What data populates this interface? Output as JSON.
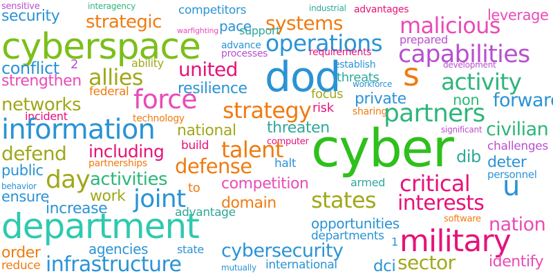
{
  "words": [
    {
      "text": "sensitive",
      "color": "#b84fd0"
    },
    {
      "text": "interagency",
      "color": "#2db67a"
    },
    {
      "text": "competitors",
      "color": "#2a93d5"
    },
    {
      "text": "industrial",
      "color": "#2fa89a"
    },
    {
      "text": "advantages",
      "color": "#e6127a"
    },
    {
      "text": "security",
      "color": "#2a93d5"
    },
    {
      "text": "strategic",
      "color": "#f07b10"
    },
    {
      "text": "pace",
      "color": "#2a93d5"
    },
    {
      "text": "systems",
      "color": "#f07b10"
    },
    {
      "text": "leverage",
      "color": "#e94bb8"
    },
    {
      "text": "malicious",
      "color": "#e94bb8"
    },
    {
      "text": "warfighting",
      "color": "#e94bb8"
    },
    {
      "text": "support",
      "color": "#2fa89a"
    },
    {
      "text": "cyberspace",
      "color": "#7bbf1a"
    },
    {
      "text": "advance",
      "color": "#2a93d5"
    },
    {
      "text": "operations",
      "color": "#2a93d5"
    },
    {
      "text": "prepared",
      "color": "#b84fd0"
    },
    {
      "text": "processes",
      "color": "#b84fd0"
    },
    {
      "text": "capabilities",
      "color": "#b84fd0"
    },
    {
      "text": "requirements",
      "color": "#e6127a"
    },
    {
      "text": "conflict",
      "color": "#2a93d5"
    },
    {
      "text": "2",
      "color": "#b84fd0"
    },
    {
      "text": "ability",
      "color": "#a0a81a"
    },
    {
      "text": "united",
      "color": "#e6127a"
    },
    {
      "text": "dod",
      "color": "#2a93d5"
    },
    {
      "text": "establish",
      "color": "#2a93d5"
    },
    {
      "text": "s",
      "color": "#f07b10"
    },
    {
      "text": "development",
      "color": "#b84fd0"
    },
    {
      "text": "allies",
      "color": "#a0a81a"
    },
    {
      "text": "activity",
      "color": "#2db67a"
    },
    {
      "text": "strengthen",
      "color": "#e94bb8"
    },
    {
      "text": "resilience",
      "color": "#2a93d5"
    },
    {
      "text": "threats",
      "color": "#2fa89a"
    },
    {
      "text": "workforce",
      "color": "#2a93d5"
    },
    {
      "text": "federal",
      "color": "#f07b10"
    },
    {
      "text": "force",
      "color": "#e94bb8"
    },
    {
      "text": "focus",
      "color": "#a0a81a"
    },
    {
      "text": "private",
      "color": "#2a93d5"
    },
    {
      "text": "non",
      "color": "#2db67a"
    },
    {
      "text": "forward",
      "color": "#2a93d5"
    },
    {
      "text": "networks",
      "color": "#a0a81a"
    },
    {
      "text": "incident",
      "color": "#e6127a"
    },
    {
      "text": "strategy",
      "color": "#f07b10"
    },
    {
      "text": "risk",
      "color": "#e6127a"
    },
    {
      "text": "sharing",
      "color": "#f07b10"
    },
    {
      "text": "partners",
      "color": "#2db67a"
    },
    {
      "text": "technology",
      "color": "#f07b10"
    },
    {
      "text": "information",
      "color": "#2a93d5"
    },
    {
      "text": "threaten",
      "color": "#2fa89a"
    },
    {
      "text": "significant",
      "color": "#b84fd0"
    },
    {
      "text": "national",
      "color": "#a0a81a"
    },
    {
      "text": "civilian",
      "color": "#2db67a"
    },
    {
      "text": "computer",
      "color": "#e6127a"
    },
    {
      "text": "cyber",
      "color": "#2ec01c"
    },
    {
      "text": "defend",
      "color": "#a0a81a"
    },
    {
      "text": "including",
      "color": "#e6127a"
    },
    {
      "text": "build",
      "color": "#e6127a"
    },
    {
      "text": "talent",
      "color": "#f07b10"
    },
    {
      "text": "dib",
      "color": "#2fa89a"
    },
    {
      "text": "challenges",
      "color": "#b84fd0"
    },
    {
      "text": "partnerships",
      "color": "#f07b10"
    },
    {
      "text": "defense",
      "color": "#f07b10"
    },
    {
      "text": "halt",
      "color": "#2a93d5"
    },
    {
      "text": "deter",
      "color": "#2a93d5"
    },
    {
      "text": "personnel",
      "color": "#2a93d5"
    },
    {
      "text": "public",
      "color": "#2a93d5"
    },
    {
      "text": "day",
      "color": "#a0a81a"
    },
    {
      "text": "activities",
      "color": "#2db67a"
    },
    {
      "text": "behavior",
      "color": "#2a93d5"
    },
    {
      "text": "to",
      "color": "#f07b10"
    },
    {
      "text": "competition",
      "color": "#e94bb8"
    },
    {
      "text": "armed",
      "color": "#2fa89a"
    },
    {
      "text": "critical",
      "color": "#e6127a"
    },
    {
      "text": "u",
      "color": "#2a93d5"
    },
    {
      "text": "ensure",
      "color": "#2a93d5"
    },
    {
      "text": "work",
      "color": "#a0a81a"
    },
    {
      "text": "joint",
      "color": "#2a93d5"
    },
    {
      "text": "domain",
      "color": "#f07b10"
    },
    {
      "text": "states",
      "color": "#a0a81a"
    },
    {
      "text": "interests",
      "color": "#e6127a"
    },
    {
      "text": "increase",
      "color": "#2a93d5"
    },
    {
      "text": "advantage",
      "color": "#2fa89a"
    },
    {
      "text": "software",
      "color": "#f07b10"
    },
    {
      "text": "department",
      "color": "#2fc9b0"
    },
    {
      "text": "opportunities",
      "color": "#2a93d5"
    },
    {
      "text": "nation",
      "color": "#e94bb8"
    },
    {
      "text": "departments",
      "color": "#2a93d5"
    },
    {
      "text": "1",
      "color": "#2a93d5"
    },
    {
      "text": "military",
      "color": "#e6127a"
    },
    {
      "text": "order",
      "color": "#f07b10"
    },
    {
      "text": "agencies",
      "color": "#2a93d5"
    },
    {
      "text": "state",
      "color": "#2a93d5"
    },
    {
      "text": "cybersecurity",
      "color": "#2a93d5"
    },
    {
      "text": "reduce",
      "color": "#f07b10"
    },
    {
      "text": "infrastructure",
      "color": "#2a93d5"
    },
    {
      "text": "mutually",
      "color": "#2a93d5"
    },
    {
      "text": "international",
      "color": "#2a93d5"
    },
    {
      "text": "dci",
      "color": "#2a93d5"
    },
    {
      "text": "sector",
      "color": "#a0a81a"
    },
    {
      "text": "identify",
      "color": "#e94bb8"
    }
  ]
}
